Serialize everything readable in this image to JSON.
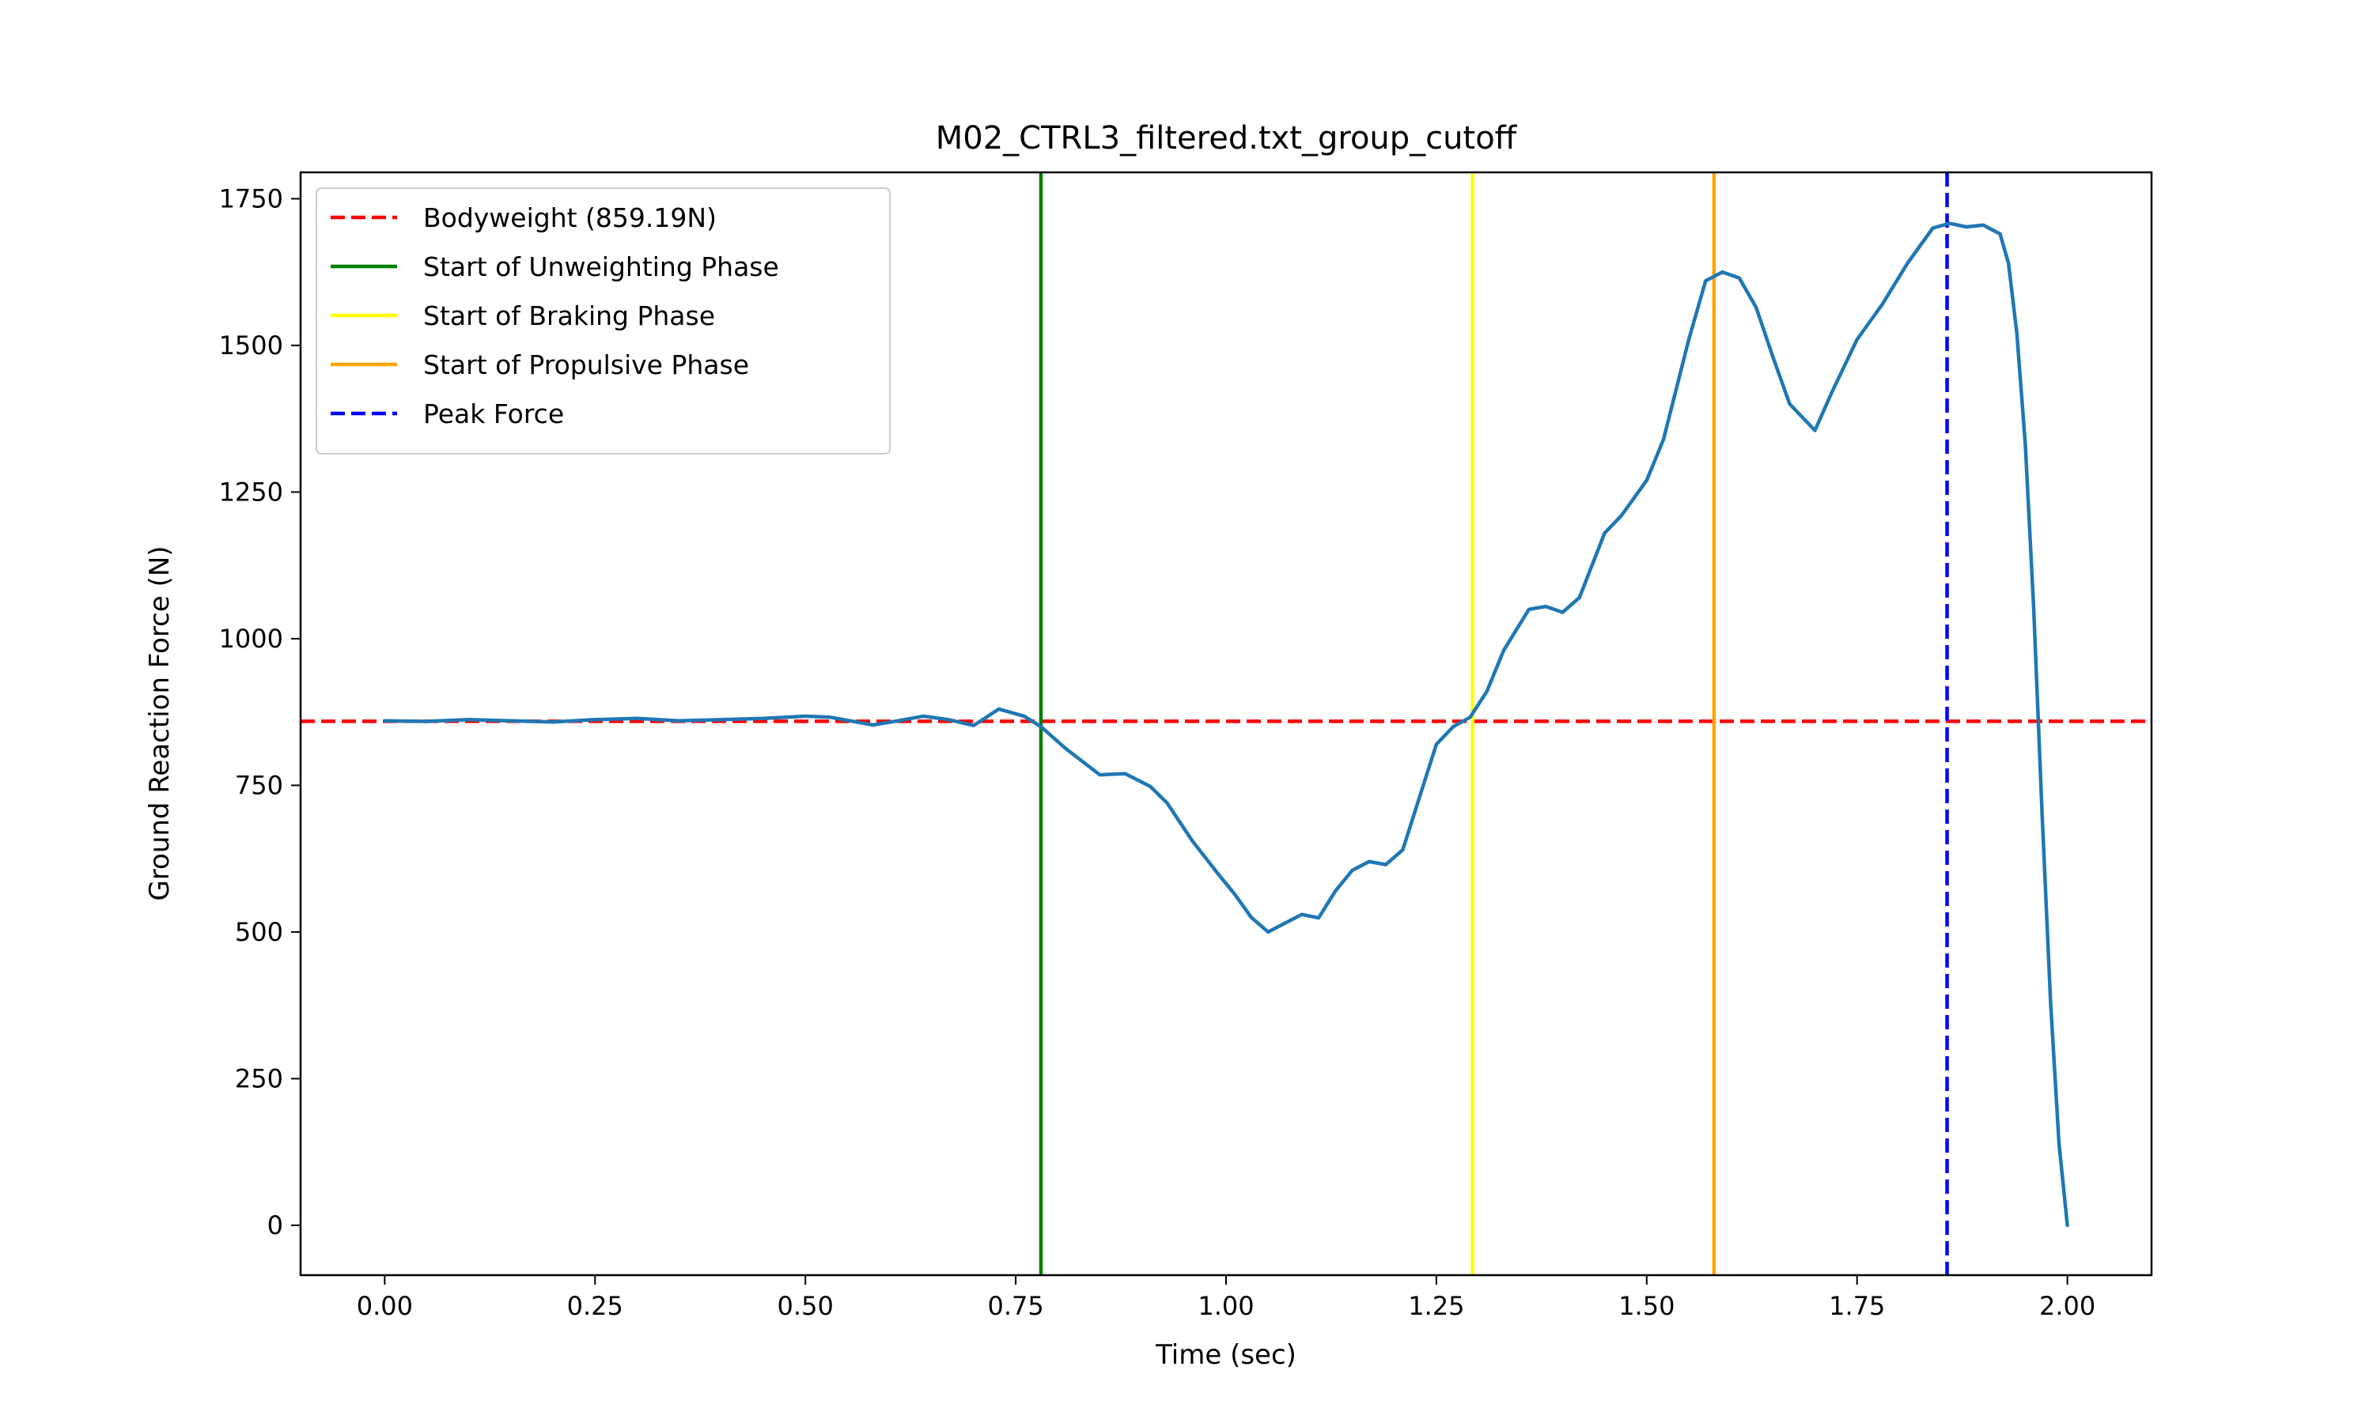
{
  "chart_data": {
    "type": "line",
    "title": "M02_CTRL3_filtered.txt_group_cutoff",
    "xlabel": "Time (sec)",
    "ylabel": "Ground Reaction Force (N)",
    "xlim": [
      -0.1,
      2.1
    ],
    "ylim": [
      -85,
      1795
    ],
    "xticks": [
      0.0,
      0.25,
      0.5,
      0.75,
      1.0,
      1.25,
      1.5,
      1.75,
      2.0
    ],
    "xtick_labels": [
      "0.00",
      "0.25",
      "0.50",
      "0.75",
      "1.00",
      "1.25",
      "1.50",
      "1.75",
      "2.00"
    ],
    "yticks": [
      0,
      250,
      500,
      750,
      1000,
      1250,
      1500,
      1750
    ],
    "ytick_labels": [
      "0",
      "250",
      "500",
      "750",
      "1000",
      "1250",
      "1500",
      "1750"
    ],
    "grid": false,
    "legend_position": "upper-left",
    "series": [
      {
        "name": "",
        "color": "#1f77b4",
        "x": [
          0.0,
          0.05,
          0.1,
          0.15,
          0.2,
          0.25,
          0.3,
          0.35,
          0.4,
          0.45,
          0.5,
          0.53,
          0.58,
          0.61,
          0.64,
          0.67,
          0.7,
          0.73,
          0.76,
          0.78,
          0.81,
          0.85,
          0.88,
          0.91,
          0.93,
          0.96,
          0.99,
          1.01,
          1.03,
          1.05,
          1.07,
          1.09,
          1.11,
          1.13,
          1.15,
          1.17,
          1.19,
          1.21,
          1.23,
          1.25,
          1.27,
          1.29,
          1.31,
          1.33,
          1.36,
          1.38,
          1.4,
          1.42,
          1.45,
          1.47,
          1.5,
          1.52,
          1.55,
          1.57,
          1.59,
          1.61,
          1.63,
          1.65,
          1.67,
          1.7,
          1.72,
          1.75,
          1.78,
          1.81,
          1.84,
          1.86,
          1.88,
          1.9,
          1.92,
          1.93,
          1.94,
          1.95,
          1.96,
          1.97,
          1.98,
          1.99,
          2.0
        ],
        "y": [
          860,
          859,
          862,
          860,
          858,
          862,
          864,
          860,
          862,
          864,
          868,
          866,
          853,
          860,
          868,
          862,
          852,
          880,
          868,
          850,
          812,
          768,
          770,
          748,
          720,
          655,
          600,
          565,
          525,
          500,
          515,
          530,
          524,
          570,
          605,
          620,
          615,
          640,
          730,
          820,
          850,
          866,
          910,
          980,
          1050,
          1055,
          1045,
          1070,
          1180,
          1210,
          1270,
          1340,
          1510,
          1610,
          1625,
          1615,
          1565,
          1480,
          1400,
          1355,
          1420,
          1510,
          1570,
          1640,
          1700,
          1708,
          1702,
          1705,
          1690,
          1640,
          1520,
          1330,
          1050,
          700,
          380,
          140,
          0
        ]
      }
    ],
    "reference_lines": [
      {
        "name": "Bodyweight (859.19N)",
        "orientation": "horizontal",
        "value": 859.19,
        "color": "#ff0000",
        "style": "dashed"
      },
      {
        "name": "Start of Unweighting Phase",
        "orientation": "vertical",
        "value": 0.78,
        "color": "#008000",
        "style": "solid"
      },
      {
        "name": "Start of Braking Phase",
        "orientation": "vertical",
        "value": 1.293,
        "color": "#ffff00",
        "style": "solid"
      },
      {
        "name": "Start of Propulsive Phase",
        "orientation": "vertical",
        "value": 1.58,
        "color": "#ffa500",
        "style": "solid"
      },
      {
        "name": "Peak Force",
        "orientation": "vertical",
        "value": 1.857,
        "color": "#0000ff",
        "style": "dashed"
      }
    ]
  }
}
